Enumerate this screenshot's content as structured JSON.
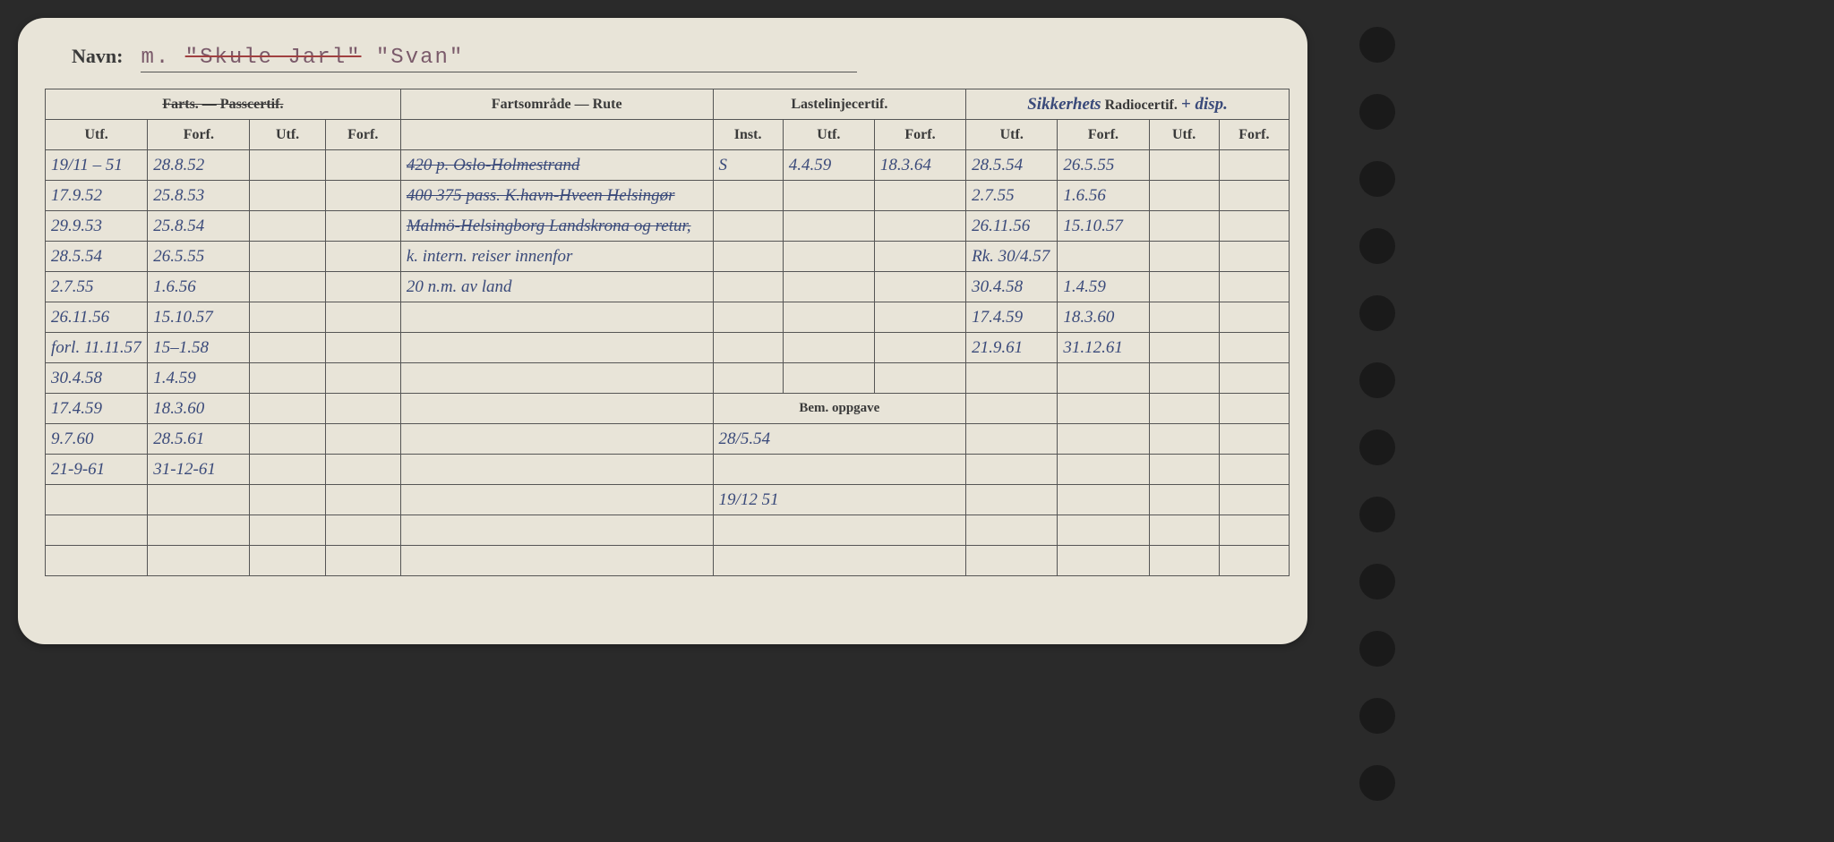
{
  "navn": {
    "label": "Navn:",
    "prefix": "m.",
    "name_struck": "\"Skule Jarl\"",
    "name_after": "\"Svan\""
  },
  "headers": {
    "group1": "Farts. — Passcertif.",
    "group2": "Fartsområde — Rute",
    "group3": "Lastelinjecertif.",
    "group4_hand": "Sikkerhets",
    "group4_print": "Radiocertif.",
    "group4_suffix": "+ disp.",
    "utf": "Utf.",
    "forf": "Forf.",
    "inst": "Inst.",
    "bem": "Bem. oppgave"
  },
  "rows": [
    {
      "utf1": "19/11 – 51",
      "forf1": "28.8.52",
      "rute": "420 p. Oslo-Holmestrand",
      "rute_strike": true,
      "inst": "S",
      "utf3": "4.4.59",
      "forf3": "18.3.64",
      "utf4": "28.5.54",
      "forf4": "26.5.55"
    },
    {
      "utf1": "17.9.52",
      "forf1": "25.8.53",
      "rute": "400  375 pass. K.havn-Hveen Helsingør",
      "rute_strike": true,
      "utf4": "2.7.55",
      "forf4": "1.6.56"
    },
    {
      "utf1": "29.9.53",
      "forf1": "25.8.54",
      "rute": "Malmö-Helsingborg Landskrona og retur,",
      "rute_strike": true,
      "utf4": "26.11.56",
      "forf4": "15.10.57"
    },
    {
      "utf1": "28.5.54",
      "forf1": "26.5.55",
      "rute": "k. intern. reiser innenfor",
      "utf4": "Rk. 30/4.57",
      "forf4": ""
    },
    {
      "utf1": "2.7.55",
      "forf1": "1.6.56",
      "rute": "20 n.m. av land",
      "utf4": "30.4.58",
      "forf4": "1.4.59"
    },
    {
      "utf1": "26.11.56",
      "forf1": "15.10.57",
      "utf4": "17.4.59",
      "forf4": "18.3.60"
    },
    {
      "utf1": "forl. 11.11.57",
      "forf1": "15–1.58",
      "utf4": "21.9.61",
      "forf4": "31.12.61"
    },
    {
      "utf1": "30.4.58",
      "forf1": "1.4.59"
    }
  ],
  "lower_rows": [
    {
      "utf1": "17.4.59",
      "forf1": "18.3.60",
      "bem": "19/12 51"
    },
    {
      "utf1": "9.7.60",
      "forf1": "28.5.61",
      "bem": "28/5.54"
    },
    {
      "utf1": "21-9-61",
      "forf1": "31-12-61",
      "bem": ""
    }
  ]
}
